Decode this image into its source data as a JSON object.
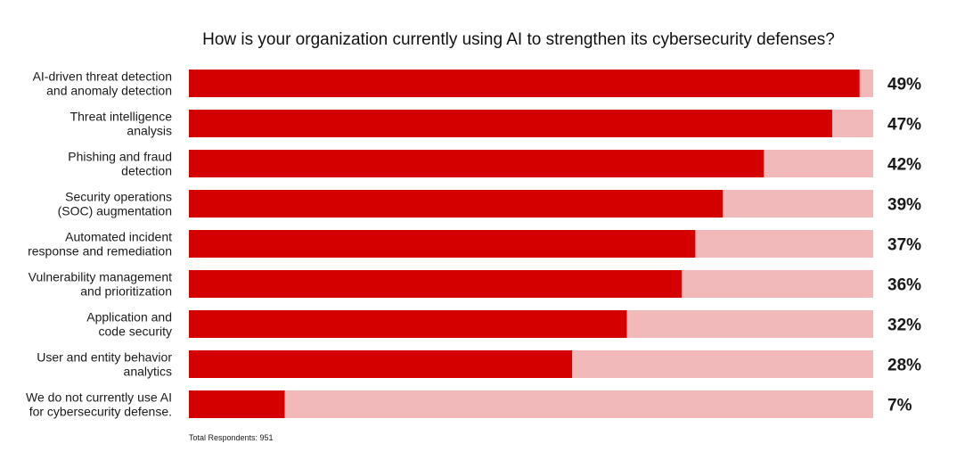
{
  "chart_data": {
    "type": "bar",
    "orientation": "horizontal",
    "title": "How is your organization currently using AI to strengthen its cybersecurity defenses?",
    "categories": [
      [
        "AI-driven threat detection",
        "and anomaly detection"
      ],
      [
        "Threat intelligence",
        "analysis"
      ],
      [
        "Phishing and fraud",
        "detection"
      ],
      [
        "Security operations",
        "(SOC) augmentation"
      ],
      [
        "Automated incident",
        "response and remediation"
      ],
      [
        "Vulnerability management",
        "and prioritization"
      ],
      [
        "Application and",
        "code security"
      ],
      [
        "User and entity behavior",
        "analytics"
      ],
      [
        "We do not currently use AI",
        "for cybersecurity defense."
      ]
    ],
    "values": [
      49,
      47,
      42,
      39,
      37,
      36,
      32,
      28,
      7
    ],
    "value_labels": [
      "49%",
      "47%",
      "42%",
      "39%",
      "37%",
      "36%",
      "32%",
      "28%",
      "7%"
    ],
    "xlim": [
      0,
      50
    ],
    "colors": {
      "bar": "#d40000",
      "track": "#f1b9b9"
    },
    "grid": false,
    "legend": "none",
    "footnote": "Total Respondents: 951"
  }
}
